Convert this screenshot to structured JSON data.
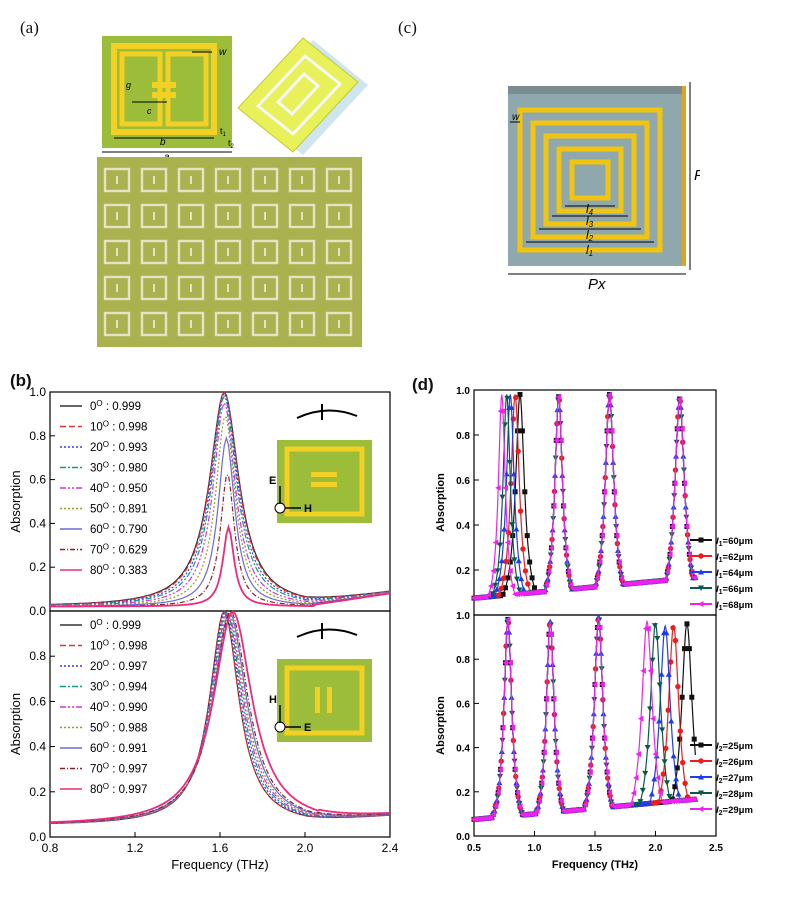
{
  "labels": {
    "a": "(a)",
    "b": "(b)",
    "c": "(c)",
    "d": "(d)"
  },
  "panel_a": {
    "dims": {
      "g": "g",
      "w": "w",
      "c": "c",
      "b": "b",
      "a": "a",
      "t1": "t",
      "t1_sub": "1",
      "t2": "t",
      "t2_sub": "2"
    }
  },
  "panel_c": {
    "w": "w",
    "py": "Py",
    "px": "Px",
    "l4": "l",
    "l4s": "4",
    "l3": "l",
    "l3s": "3",
    "l2": "l",
    "l2s": "2",
    "l1": "l",
    "l1s": "1"
  },
  "colors": {
    "green": "#9cbd3a",
    "yellow": "#f2d024",
    "gold": "#f1c40f",
    "c_bg": "#8fa8ad",
    "photo": "#aab24f"
  },
  "chart_data": [
    {
      "type": "line",
      "panel": "b-top",
      "xlabel": "",
      "ylabel": "Absorption",
      "xlim": [
        0.8,
        2.4
      ],
      "ylim": [
        0.0,
        1.0
      ],
      "yticks": [
        "0.0",
        "0.2",
        "0.4",
        "0.6",
        "0.8",
        "1.0"
      ],
      "inset": {
        "e": "E",
        "h": "H"
      },
      "series": [
        {
          "name": "0° : 0.999",
          "angle": "0",
          "val": "0.999",
          "color": "#333333",
          "dash": "",
          "peak": 0.999,
          "f0": 1.62,
          "gamma": 0.16
        },
        {
          "name": "10° : 0.998",
          "angle": "10",
          "val": "0.998",
          "color": "#e8312f",
          "dash": "6,3",
          "peak": 0.998,
          "f0": 1.62,
          "gamma": 0.155
        },
        {
          "name": "20° : 0.993",
          "angle": "20",
          "val": "0.993",
          "color": "#3a3af0",
          "dash": "2,2",
          "peak": 0.993,
          "f0": 1.62,
          "gamma": 0.145
        },
        {
          "name": "30° : 0.980",
          "angle": "30",
          "val": "0.980",
          "color": "#119988",
          "dash": "6,2,2,2",
          "peak": 0.98,
          "f0": 1.62,
          "gamma": 0.135
        },
        {
          "name": "40° : 0.950",
          "angle": "40",
          "val": "0.950",
          "color": "#d633d6",
          "dash": "6,2,2,2,2,2",
          "peak": 0.95,
          "f0": 1.62,
          "gamma": 0.12
        },
        {
          "name": "50° : 0.891",
          "angle": "50",
          "val": "0.891",
          "color": "#9a9a22",
          "dash": "2,2",
          "peak": 0.891,
          "f0": 1.625,
          "gamma": 0.105
        },
        {
          "name": "60° : 0.790",
          "angle": "60",
          "val": "0.790",
          "color": "#6b6bd8",
          "dash": "",
          "peak": 0.79,
          "f0": 1.63,
          "gamma": 0.09
        },
        {
          "name": "70° : 0.629",
          "angle": "70",
          "val": "0.629",
          "color": "#8a2222",
          "dash": "5,2,1,2",
          "peak": 0.629,
          "f0": 1.635,
          "gamma": 0.075
        },
        {
          "name": "80° : 0.383",
          "angle": "80",
          "val": "0.383",
          "color": "#ee2a7b",
          "dash": "",
          "peak": 0.383,
          "f0": 1.64,
          "gamma": 0.06
        }
      ]
    },
    {
      "type": "line",
      "panel": "b-bottom",
      "xlabel": "Frequency (THz)",
      "ylabel": "Absorption",
      "xlim": [
        0.8,
        2.4
      ],
      "ylim": [
        0.0,
        1.0
      ],
      "xticks": [
        "0.8",
        "1.2",
        "1.6",
        "2.0",
        "2.4"
      ],
      "yticks": [
        "0.0",
        "0.2",
        "0.4",
        "0.6",
        "0.8"
      ],
      "inset": {
        "h": "H",
        "e": "E"
      },
      "series": [
        {
          "name": "0° : 0.999",
          "angle": "0",
          "val": "0.999",
          "color": "#333333",
          "dash": "",
          "peak": 0.999,
          "f0": 1.62,
          "gamma": 0.16
        },
        {
          "name": "10° : 0.998",
          "angle": "10",
          "val": "0.998",
          "color": "#e8312f",
          "dash": "6,3",
          "peak": 0.998,
          "f0": 1.62,
          "gamma": 0.16
        },
        {
          "name": "20° : 0.997",
          "angle": "20",
          "val": "0.997",
          "color": "#3a3af0",
          "dash": "2,2",
          "peak": 0.997,
          "f0": 1.625,
          "gamma": 0.165
        },
        {
          "name": "30° : 0.994",
          "angle": "30",
          "val": "0.994",
          "color": "#119988",
          "dash": "6,2,2,2",
          "peak": 0.994,
          "f0": 1.63,
          "gamma": 0.17
        },
        {
          "name": "40° : 0.990",
          "angle": "40",
          "val": "0.990",
          "color": "#d633d6",
          "dash": "6,2,2,2,2,2",
          "peak": 0.99,
          "f0": 1.635,
          "gamma": 0.175
        },
        {
          "name": "50° : 0.988",
          "angle": "50",
          "val": "0.988",
          "color": "#9a9a22",
          "dash": "2,2",
          "peak": 0.988,
          "f0": 1.64,
          "gamma": 0.18
        },
        {
          "name": "60° : 0.991",
          "angle": "60",
          "val": "0.991",
          "color": "#6b6bd8",
          "dash": "",
          "peak": 0.991,
          "f0": 1.645,
          "gamma": 0.185
        },
        {
          "name": "70° : 0.997",
          "angle": "70",
          "val": "0.997",
          "color": "#8a2222",
          "dash": "5,2,1,2",
          "peak": 0.997,
          "f0": 1.65,
          "gamma": 0.19
        },
        {
          "name": "80° : 0.997",
          "angle": "80",
          "val": "0.997",
          "color": "#ee2a7b",
          "dash": "",
          "peak": 0.997,
          "f0": 1.66,
          "gamma": 0.21
        }
      ]
    },
    {
      "type": "line",
      "panel": "d-top",
      "xlabel": "",
      "ylabel": "Absorption",
      "xlim": [
        0.5,
        2.5
      ],
      "ylim": [
        0.0,
        1.0
      ],
      "yticks": [
        "0.2",
        "0.4",
        "0.6",
        "0.8",
        "1.0"
      ],
      "series": [
        {
          "name": "l1=60μm",
          "pre": "l",
          "sub": "1",
          "suffix": "=60μm",
          "color": "#111111",
          "marker": "square",
          "peaks": [
            0.88,
            1.2,
            1.62,
            2.2
          ],
          "heights": [
            0.98,
            0.97,
            0.98,
            0.96
          ],
          "widths": [
            0.09,
            0.08,
            0.09,
            0.1
          ]
        },
        {
          "name": "l1=62μm",
          "pre": "l",
          "sub": "1",
          "suffix": "=62μm",
          "color": "#ee1c1c",
          "marker": "circle",
          "peaks": [
            0.84,
            1.2,
            1.62,
            2.2
          ],
          "heights": [
            0.98,
            0.97,
            0.98,
            0.96
          ],
          "widths": [
            0.085,
            0.08,
            0.09,
            0.1
          ]
        },
        {
          "name": "l1=64μm",
          "pre": "l",
          "sub": "1",
          "suffix": "=64μm",
          "color": "#1c3cee",
          "marker": "triangle",
          "peaks": [
            0.8,
            1.2,
            1.62,
            2.2
          ],
          "heights": [
            0.98,
            0.97,
            0.98,
            0.96
          ],
          "widths": [
            0.08,
            0.08,
            0.09,
            0.1
          ]
        },
        {
          "name": "l1=66μm",
          "pre": "l",
          "sub": "1",
          "suffix": "=66μm",
          "color": "#0a5a4a",
          "marker": "tridown",
          "peaks": [
            0.77,
            1.2,
            1.62,
            2.2
          ],
          "heights": [
            0.98,
            0.97,
            0.98,
            0.96
          ],
          "widths": [
            0.075,
            0.08,
            0.09,
            0.1
          ]
        },
        {
          "name": "l1=68μm",
          "pre": "l",
          "sub": "1",
          "suffix": "=68μm",
          "color": "#ee22ee",
          "marker": "tri-left",
          "peaks": [
            0.73,
            1.2,
            1.62,
            2.2
          ],
          "heights": [
            0.98,
            0.97,
            0.98,
            0.96
          ],
          "widths": [
            0.07,
            0.08,
            0.09,
            0.1
          ]
        }
      ]
    },
    {
      "type": "line",
      "panel": "d-bottom",
      "xlabel": "Frequency  (THz)",
      "ylabel": "Absorption",
      "xlim": [
        0.5,
        2.5
      ],
      "ylim": [
        0.0,
        1.0
      ],
      "xticks": [
        "0.5",
        "1.0",
        "1.5",
        "2.0",
        "2.5"
      ],
      "yticks": [
        "0.0",
        "0.2",
        "0.4",
        "0.6",
        "0.8",
        "1.0"
      ],
      "series": [
        {
          "name": "l2=25μm",
          "pre": "l",
          "sub": "2",
          "suffix": "=25μm",
          "color": "#111111",
          "marker": "square",
          "peaks": [
            0.78,
            1.13,
            1.53,
            2.26
          ],
          "heights": [
            0.98,
            0.97,
            0.99,
            0.96
          ],
          "widths": [
            0.08,
            0.08,
            0.09,
            0.11
          ]
        },
        {
          "name": "l2=26μm",
          "pre": "l",
          "sub": "2",
          "suffix": "=26μm",
          "color": "#ee1c1c",
          "marker": "circle",
          "peaks": [
            0.78,
            1.13,
            1.53,
            2.15
          ],
          "heights": [
            0.98,
            0.97,
            0.99,
            0.95
          ],
          "widths": [
            0.08,
            0.08,
            0.09,
            0.11
          ]
        },
        {
          "name": "l2=27μm",
          "pre": "l",
          "sub": "2",
          "suffix": "=27μm",
          "color": "#1c3cee",
          "marker": "triangle",
          "peaks": [
            0.78,
            1.13,
            1.53,
            2.08
          ],
          "heights": [
            0.98,
            0.97,
            0.99,
            0.95
          ],
          "widths": [
            0.08,
            0.08,
            0.09,
            0.11
          ]
        },
        {
          "name": "l2=28μm",
          "pre": "l",
          "sub": "2",
          "suffix": "=28μm",
          "color": "#0a5a4a",
          "marker": "tridown",
          "peaks": [
            0.78,
            1.13,
            1.53,
            2.0
          ],
          "heights": [
            0.98,
            0.97,
            0.99,
            0.96
          ],
          "widths": [
            0.08,
            0.08,
            0.09,
            0.11
          ]
        },
        {
          "name": "l2=29μm",
          "pre": "l",
          "sub": "2",
          "suffix": "=29μm",
          "color": "#ee22ee",
          "marker": "tri-left",
          "peaks": [
            0.78,
            1.13,
            1.53,
            1.93
          ],
          "heights": [
            0.98,
            0.97,
            0.99,
            0.97
          ],
          "widths": [
            0.08,
            0.08,
            0.09,
            0.11
          ]
        }
      ]
    }
  ]
}
